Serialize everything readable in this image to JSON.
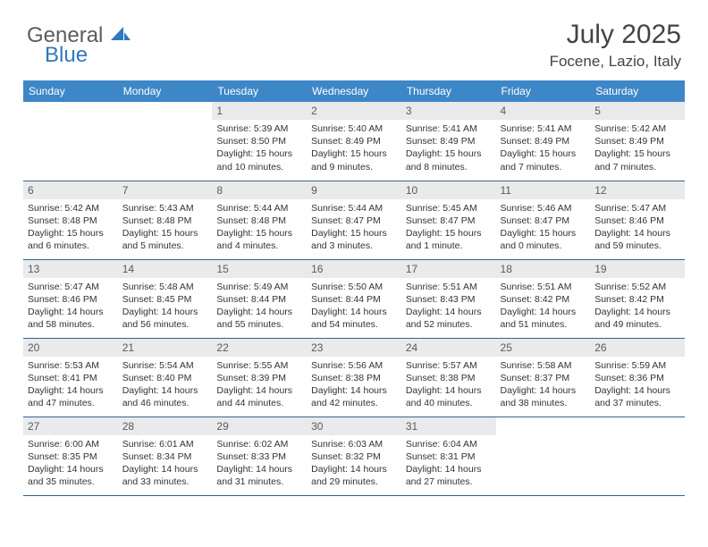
{
  "brand": {
    "general": "General",
    "blue": "Blue"
  },
  "title": "July 2025",
  "location": "Focene, Lazio, Italy",
  "colors": {
    "header_bg": "#3d87c7",
    "header_text": "#ffffff",
    "daynum_bg": "#e9eaeb",
    "daynum_text": "#5a5a5a",
    "body_text": "#333333",
    "rule": "#33648f",
    "logo_gray": "#5c5c5c",
    "logo_blue": "#2f79bd"
  },
  "daysOfWeek": [
    "Sunday",
    "Monday",
    "Tuesday",
    "Wednesday",
    "Thursday",
    "Friday",
    "Saturday"
  ],
  "weeks": [
    [
      null,
      null,
      {
        "n": "1",
        "sr": "5:39 AM",
        "ss": "8:50 PM",
        "dl": "15 hours and 10 minutes."
      },
      {
        "n": "2",
        "sr": "5:40 AM",
        "ss": "8:49 PM",
        "dl": "15 hours and 9 minutes."
      },
      {
        "n": "3",
        "sr": "5:41 AM",
        "ss": "8:49 PM",
        "dl": "15 hours and 8 minutes."
      },
      {
        "n": "4",
        "sr": "5:41 AM",
        "ss": "8:49 PM",
        "dl": "15 hours and 7 minutes."
      },
      {
        "n": "5",
        "sr": "5:42 AM",
        "ss": "8:49 PM",
        "dl": "15 hours and 7 minutes."
      }
    ],
    [
      {
        "n": "6",
        "sr": "5:42 AM",
        "ss": "8:48 PM",
        "dl": "15 hours and 6 minutes."
      },
      {
        "n": "7",
        "sr": "5:43 AM",
        "ss": "8:48 PM",
        "dl": "15 hours and 5 minutes."
      },
      {
        "n": "8",
        "sr": "5:44 AM",
        "ss": "8:48 PM",
        "dl": "15 hours and 4 minutes."
      },
      {
        "n": "9",
        "sr": "5:44 AM",
        "ss": "8:47 PM",
        "dl": "15 hours and 3 minutes."
      },
      {
        "n": "10",
        "sr": "5:45 AM",
        "ss": "8:47 PM",
        "dl": "15 hours and 1 minute."
      },
      {
        "n": "11",
        "sr": "5:46 AM",
        "ss": "8:47 PM",
        "dl": "15 hours and 0 minutes."
      },
      {
        "n": "12",
        "sr": "5:47 AM",
        "ss": "8:46 PM",
        "dl": "14 hours and 59 minutes."
      }
    ],
    [
      {
        "n": "13",
        "sr": "5:47 AM",
        "ss": "8:46 PM",
        "dl": "14 hours and 58 minutes."
      },
      {
        "n": "14",
        "sr": "5:48 AM",
        "ss": "8:45 PM",
        "dl": "14 hours and 56 minutes."
      },
      {
        "n": "15",
        "sr": "5:49 AM",
        "ss": "8:44 PM",
        "dl": "14 hours and 55 minutes."
      },
      {
        "n": "16",
        "sr": "5:50 AM",
        "ss": "8:44 PM",
        "dl": "14 hours and 54 minutes."
      },
      {
        "n": "17",
        "sr": "5:51 AM",
        "ss": "8:43 PM",
        "dl": "14 hours and 52 minutes."
      },
      {
        "n": "18",
        "sr": "5:51 AM",
        "ss": "8:42 PM",
        "dl": "14 hours and 51 minutes."
      },
      {
        "n": "19",
        "sr": "5:52 AM",
        "ss": "8:42 PM",
        "dl": "14 hours and 49 minutes."
      }
    ],
    [
      {
        "n": "20",
        "sr": "5:53 AM",
        "ss": "8:41 PM",
        "dl": "14 hours and 47 minutes."
      },
      {
        "n": "21",
        "sr": "5:54 AM",
        "ss": "8:40 PM",
        "dl": "14 hours and 46 minutes."
      },
      {
        "n": "22",
        "sr": "5:55 AM",
        "ss": "8:39 PM",
        "dl": "14 hours and 44 minutes."
      },
      {
        "n": "23",
        "sr": "5:56 AM",
        "ss": "8:38 PM",
        "dl": "14 hours and 42 minutes."
      },
      {
        "n": "24",
        "sr": "5:57 AM",
        "ss": "8:38 PM",
        "dl": "14 hours and 40 minutes."
      },
      {
        "n": "25",
        "sr": "5:58 AM",
        "ss": "8:37 PM",
        "dl": "14 hours and 38 minutes."
      },
      {
        "n": "26",
        "sr": "5:59 AM",
        "ss": "8:36 PM",
        "dl": "14 hours and 37 minutes."
      }
    ],
    [
      {
        "n": "27",
        "sr": "6:00 AM",
        "ss": "8:35 PM",
        "dl": "14 hours and 35 minutes."
      },
      {
        "n": "28",
        "sr": "6:01 AM",
        "ss": "8:34 PM",
        "dl": "14 hours and 33 minutes."
      },
      {
        "n": "29",
        "sr": "6:02 AM",
        "ss": "8:33 PM",
        "dl": "14 hours and 31 minutes."
      },
      {
        "n": "30",
        "sr": "6:03 AM",
        "ss": "8:32 PM",
        "dl": "14 hours and 29 minutes."
      },
      {
        "n": "31",
        "sr": "6:04 AM",
        "ss": "8:31 PM",
        "dl": "14 hours and 27 minutes."
      },
      null,
      null
    ]
  ],
  "labels": {
    "sunrise": "Sunrise:",
    "sunset": "Sunset:",
    "daylight": "Daylight:"
  }
}
